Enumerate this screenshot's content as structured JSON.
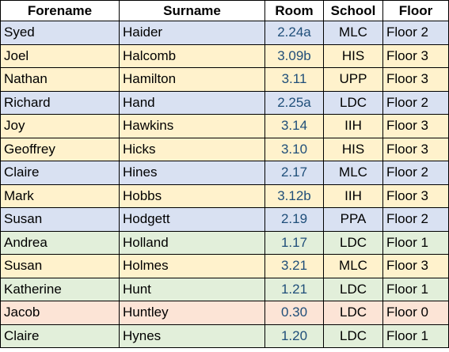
{
  "table": {
    "headers": {
      "forename": "Forename",
      "surname": "Surname",
      "room": "Room",
      "school": "School",
      "floor": "Floor"
    },
    "row_colors": {
      "Floor 0": "#fce4d6",
      "Floor 1": "#e2efda",
      "Floor 2": "#d9e1f2",
      "Floor 3": "#fff2cc"
    },
    "rows": [
      {
        "forename": "Syed",
        "surname": "Haider",
        "room": "2.24a",
        "school": "MLC",
        "floor": "Floor 2"
      },
      {
        "forename": "Joel",
        "surname": "Halcomb",
        "room": "3.09b",
        "school": "HIS",
        "floor": "Floor 3"
      },
      {
        "forename": "Nathan",
        "surname": "Hamilton",
        "room": "3.11",
        "school": "UPP",
        "floor": "Floor 3"
      },
      {
        "forename": "Richard",
        "surname": "Hand",
        "room": "2.25a",
        "school": "LDC",
        "floor": "Floor 2"
      },
      {
        "forename": "Joy",
        "surname": "Hawkins",
        "room": "3.14",
        "school": "IIH",
        "floor": "Floor 3"
      },
      {
        "forename": "Geoffrey",
        "surname": "Hicks",
        "room": "3.10",
        "school": "HIS",
        "floor": "Floor 3"
      },
      {
        "forename": "Claire",
        "surname": "Hines",
        "room": "2.17",
        "school": "MLC",
        "floor": "Floor 2"
      },
      {
        "forename": "Mark",
        "surname": "Hobbs",
        "room": "3.12b",
        "school": "IIH",
        "floor": "Floor 3"
      },
      {
        "forename": "Susan",
        "surname": "Hodgett",
        "room": "2.19",
        "school": "PPA",
        "floor": "Floor 2"
      },
      {
        "forename": "Andrea",
        "surname": "Holland",
        "room": "1.17",
        "school": "LDC",
        "floor": "Floor 1"
      },
      {
        "forename": "Susan",
        "surname": "Holmes",
        "room": "3.21",
        "school": "MLC",
        "floor": "Floor 3"
      },
      {
        "forename": "Katherine",
        "surname": "Hunt",
        "room": "1.21",
        "school": "LDC",
        "floor": "Floor 1"
      },
      {
        "forename": "Jacob",
        "surname": "Huntley",
        "room": "0.30",
        "school": "LDC",
        "floor": "Floor 0"
      },
      {
        "forename": "Claire",
        "surname": "Hynes",
        "room": "1.20",
        "school": "LDC",
        "floor": "Floor 1"
      }
    ]
  }
}
